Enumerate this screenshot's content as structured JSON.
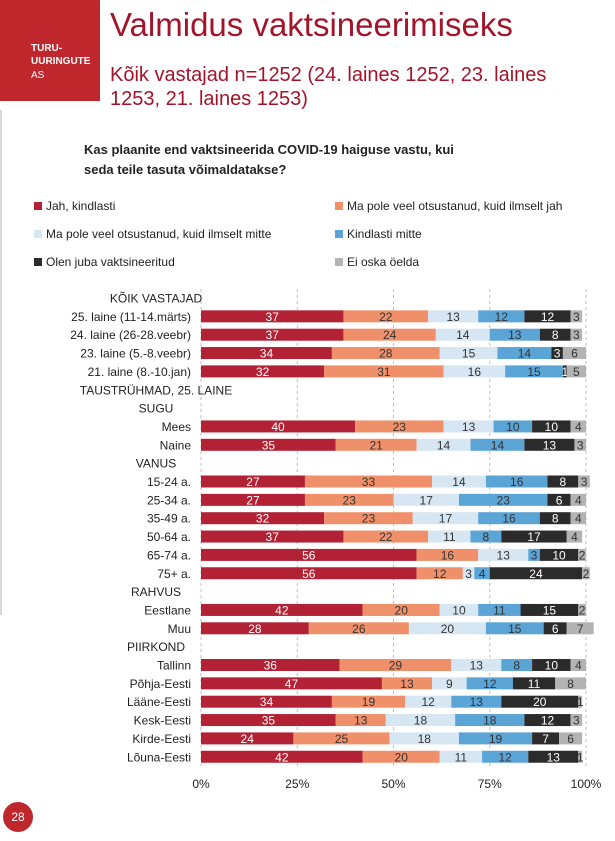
{
  "header": {
    "logo_line1": "TURU-",
    "logo_line2": "UURINGUTE",
    "logo_line3": "AS",
    "title": "Valmidus vaktsineerimiseks",
    "subtitle": "Kõik vastajad n=1252 (24. laines 1252, 23. laines 1253, 21. laines 1253)",
    "page_number": "28"
  },
  "chart_data": {
    "type": "bar",
    "orientation": "horizontal",
    "stacked": "100%",
    "title": "Kas plaanite end vaktsineerida COVID-19 haiguse vastu, kui seda teile tasuta võimaldatakse?",
    "series": [
      {
        "name": "Jah, kindlasti",
        "color": "#b22234"
      },
      {
        "name": "Ma pole veel otsustanud, kuid ilmselt jah",
        "color": "#f0906a"
      },
      {
        "name": "Ma pole veel otsustanud, kuid ilmselt mitte",
        "color": "#d6e6f2"
      },
      {
        "name": "Kindlasti mitte",
        "color": "#5ba4d6"
      },
      {
        "name": "Olen juba vaktsineeritud",
        "color": "#2b2b2b"
      },
      {
        "name": "Ei oska öelda",
        "color": "#b3b3b3"
      }
    ],
    "x_ticks": [
      "0%",
      "25%",
      "50%",
      "75%",
      "100%"
    ],
    "xlim": [
      0,
      100
    ],
    "rows": [
      {
        "label": "KÕIK VASTAJAD",
        "header": true
      },
      {
        "label": "25. laine (11-14.märts)",
        "values": [
          37,
          22,
          13,
          12,
          12,
          3
        ]
      },
      {
        "label": "24. laine (26-28.veebr)",
        "values": [
          37,
          24,
          14,
          13,
          8,
          3
        ]
      },
      {
        "label": "23. laine (5.-8.veebr)",
        "values": [
          34,
          28,
          15,
          14,
          3,
          6
        ]
      },
      {
        "label": "21. laine (8.-10.jan)",
        "values": [
          32,
          31,
          16,
          15,
          1,
          5
        ]
      },
      {
        "label": "TAUSTRÜHMAD, 25. LAINE",
        "header": true
      },
      {
        "label": "SUGU",
        "header": true
      },
      {
        "label": "Mees",
        "values": [
          40,
          23,
          13,
          10,
          10,
          4
        ]
      },
      {
        "label": "Naine",
        "values": [
          35,
          21,
          14,
          14,
          13,
          3
        ]
      },
      {
        "label": "VANUS",
        "header": true
      },
      {
        "label": "15-24 a.",
        "values": [
          27,
          33,
          14,
          16,
          8,
          3
        ]
      },
      {
        "label": "25-34 a.",
        "values": [
          27,
          23,
          17,
          23,
          6,
          4
        ]
      },
      {
        "label": "35-49 a.",
        "values": [
          32,
          23,
          17,
          16,
          8,
          4
        ]
      },
      {
        "label": "50-64 a.",
        "values": [
          37,
          22,
          11,
          8,
          17,
          4
        ]
      },
      {
        "label": "65-74 a.",
        "values": [
          56,
          16,
          13,
          3,
          10,
          2
        ]
      },
      {
        "label": "75+ a.",
        "values": [
          56,
          12,
          3,
          4,
          24,
          2
        ]
      },
      {
        "label": "RAHVUS",
        "header": true
      },
      {
        "label": "Eestlane",
        "values": [
          42,
          20,
          10,
          11,
          15,
          2
        ]
      },
      {
        "label": "Muu",
        "values": [
          28,
          26,
          20,
          15,
          6,
          7
        ]
      },
      {
        "label": "PIIRKOND",
        "header": true
      },
      {
        "label": "Tallinn",
        "values": [
          36,
          29,
          13,
          8,
          10,
          4
        ]
      },
      {
        "label": "Põhja-Eesti",
        "values": [
          47,
          13,
          9,
          12,
          11,
          8
        ]
      },
      {
        "label": "Lääne-Eesti",
        "values": [
          34,
          19,
          12,
          13,
          20,
          1
        ]
      },
      {
        "label": "Kesk-Eesti",
        "values": [
          35,
          13,
          18,
          18,
          12,
          3
        ]
      },
      {
        "label": "Kirde-Eesti",
        "values": [
          24,
          25,
          18,
          19,
          7,
          6
        ]
      },
      {
        "label": "Lõuna-Eesti",
        "values": [
          42,
          20,
          11,
          12,
          13,
          1
        ]
      }
    ]
  }
}
